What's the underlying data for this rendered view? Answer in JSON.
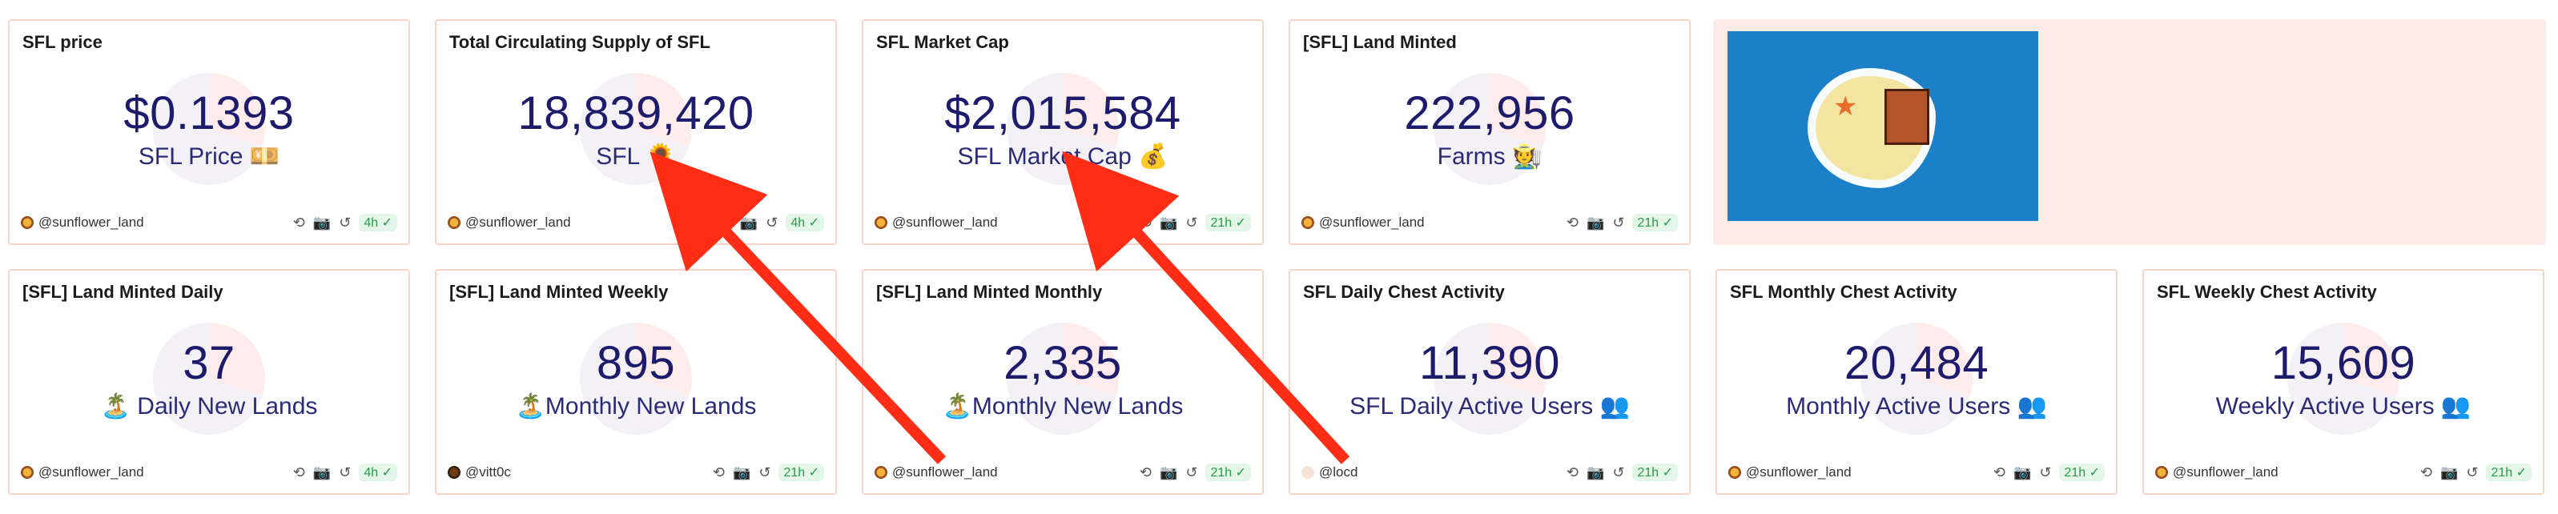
{
  "cards": [
    {
      "title": "SFL price",
      "value": "$0.1393",
      "label": "SFL Price 💴",
      "author": "@sunflower_land",
      "badge": "4h ✓"
    },
    {
      "title": "Total Circulating Supply of SFL",
      "value": "18,839,420",
      "label": "SFL 🌻",
      "author": "@sunflower_land",
      "badge": "4h ✓"
    },
    {
      "title": "SFL Market Cap",
      "value": "$2,015,584",
      "label": "SFL Market Cap 💰",
      "author": "@sunflower_land",
      "badge": "21h ✓"
    },
    {
      "title": "[SFL] Land Minted",
      "value": "222,956",
      "label": "Farms 🧑‍🌾",
      "author": "@sunflower_land",
      "badge": "21h ✓"
    },
    {
      "title": "[SFL] Land Minted Daily",
      "value": "37",
      "label": "🏝️ Daily New Lands",
      "author": "@sunflower_land",
      "badge": "4h ✓"
    },
    {
      "title": "[SFL] Land Minted Weekly",
      "value": "895",
      "label": "🏝️Monthly New Lands",
      "author": "@vitt0c",
      "badge": "21h ✓"
    },
    {
      "title": "[SFL] Land Minted Monthly",
      "value": "2,335",
      "label": "🏝️Monthly New Lands",
      "author": "@sunflower_land",
      "badge": "21h ✓"
    },
    {
      "title": "SFL Daily Chest Activity",
      "value": "11,390",
      "label": "SFL Daily Active Users 👥",
      "author": "@locd",
      "badge": "21h ✓"
    },
    {
      "title": "SFL Monthly Chest Activity",
      "value": "20,484",
      "label": "Monthly Active Users 👥",
      "author": "@sunflower_land",
      "badge": "21h ✓"
    },
    {
      "title": "SFL Weekly Chest Activity",
      "value": "15,609",
      "label": "Weekly Active Users 👥",
      "author": "@sunflower_land",
      "badge": "21h ✓"
    }
  ],
  "footer_icons": [
    "refresh-like-icon",
    "camera-icon",
    "undo-icon"
  ],
  "accent": "#1d1b6b",
  "annotation_color": "#ff2d16"
}
